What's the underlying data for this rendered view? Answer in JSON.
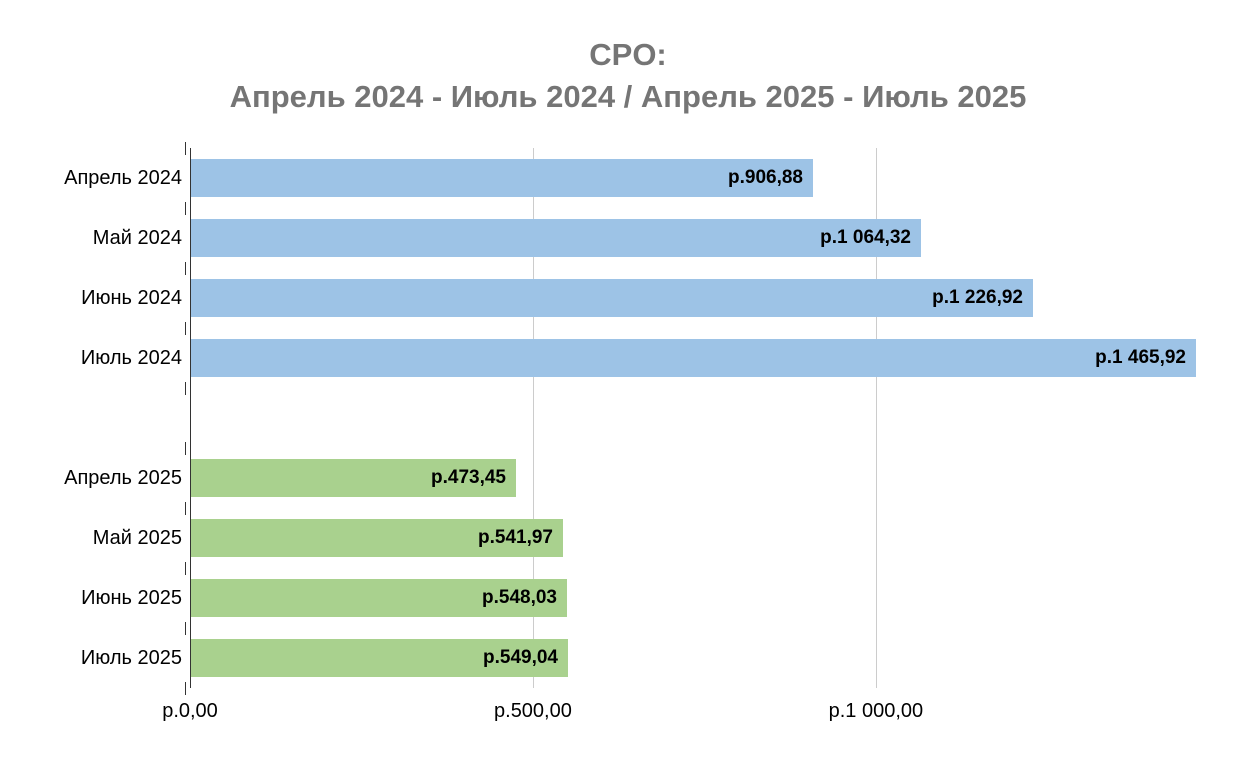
{
  "title": {
    "line1": "CPO:",
    "line2": "Апрель 2024 - Июль 2024 / Апрель 2025 - Июль 2025"
  },
  "chart_data": {
    "type": "bar",
    "orientation": "horizontal",
    "title": "CPO:\nАпрель 2024 - Июль 2024 / Апрель 2025 - Июль 2025",
    "categories": [
      "Апрель 2024",
      "Май 2024",
      "Июнь 2024",
      "Июль 2024",
      "",
      "Апрель 2025",
      "Май 2025",
      "Июнь 2025",
      "Июль 2025"
    ],
    "values": [
      906.88,
      1064.32,
      1226.92,
      1465.92,
      null,
      473.45,
      541.97,
      548.03,
      549.04
    ],
    "value_labels": [
      "р.906,88",
      "р.1 064,32",
      "р.1 226,92",
      "р.1 465,92",
      "",
      "р.473,45",
      "р.541,97",
      "р.548,03",
      "р.549,04"
    ],
    "bar_colors": [
      "#9DC3E6",
      "#9DC3E6",
      "#9DC3E6",
      "#9DC3E6",
      null,
      "#A9D18E",
      "#A9D18E",
      "#A9D18E",
      "#A9D18E"
    ],
    "groups": [
      {
        "name": "Апрель 2024 - Июль 2024",
        "color": "#9DC3E6"
      },
      {
        "name": "Апрель 2025 - Июль 2025",
        "color": "#A9D18E"
      }
    ],
    "xlabel": "",
    "ylabel": "",
    "xlim": [
      0,
      1525
    ],
    "x_ticks": [
      {
        "value": 0,
        "label": "р.0,00"
      },
      {
        "value": 500,
        "label": "р.500,00"
      },
      {
        "value": 1000,
        "label": "р.1 000,00"
      }
    ],
    "grid": true,
    "legend": "none",
    "title_color": "#757575",
    "gridline_color": "#cccccc",
    "axis_color": "#333333",
    "value_label_color": "#000000"
  }
}
